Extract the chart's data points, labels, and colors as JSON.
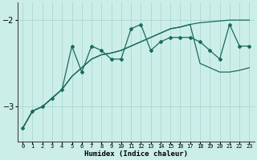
{
  "xlabel": "Humidex (Indice chaleur)",
  "background_color": "#cceee8",
  "line_color": "#1a6b5a",
  "grid_color": "#aad8d0",
  "x_values": [
    0,
    1,
    2,
    3,
    4,
    5,
    6,
    7,
    8,
    9,
    10,
    11,
    12,
    13,
    14,
    15,
    16,
    17,
    18,
    19,
    20,
    21,
    22,
    23
  ],
  "line1_y": [
    -3.25,
    -3.05,
    -3.0,
    -2.9,
    -2.8,
    -2.3,
    -2.6,
    -2.3,
    -2.35,
    -2.45,
    -2.45,
    -2.1,
    -2.05,
    -2.35,
    -2.25,
    -2.2,
    -2.2,
    -2.2,
    -2.25,
    -2.35,
    -2.45,
    -2.05,
    -2.3,
    -2.3
  ],
  "line2_y": [
    -3.25,
    -3.05,
    -3.0,
    -2.9,
    -2.8,
    -2.65,
    -2.55,
    -2.45,
    -2.4,
    -2.38,
    -2.35,
    -2.3,
    -2.25,
    -2.2,
    -2.15,
    -2.1,
    -2.08,
    -2.05,
    -2.03,
    -2.02,
    -2.01,
    -2.0,
    -2.0,
    -2.0
  ],
  "line3_y": [
    -3.25,
    -3.05,
    -3.0,
    -2.9,
    -2.8,
    -2.65,
    -2.55,
    -2.45,
    -2.4,
    -2.38,
    -2.35,
    -2.3,
    -2.25,
    -2.2,
    -2.15,
    -2.1,
    -2.08,
    -2.05,
    -2.5,
    -2.55,
    -2.6,
    -2.6,
    -2.58,
    -2.55
  ],
  "ylim": [
    -3.4,
    -1.8
  ],
  "yticks": [
    -3.0,
    -2.0
  ],
  "xlim": [
    -0.5,
    23.5
  ]
}
